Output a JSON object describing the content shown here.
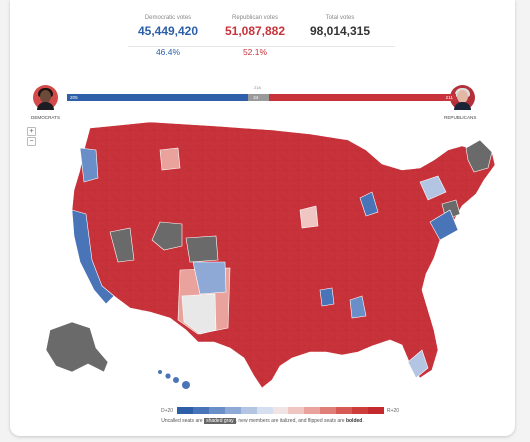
{
  "totals": {
    "democratic": {
      "label": "Democratic votes",
      "votes": "45,449,420",
      "pct": "46.4%"
    },
    "republican": {
      "label": "Republican votes",
      "votes": "51,087,882",
      "pct": "52.1%"
    },
    "total": {
      "label": "Total votes",
      "votes": "98,014,315"
    }
  },
  "seats": {
    "dem": 205,
    "uncalled": 24,
    "rep": 211,
    "majority": "218",
    "dem_label": "205",
    "uncalled_label": "24",
    "rep_label": "211"
  },
  "candidates": {
    "left": "DEMOCRATS",
    "right": "REPUBLICANS"
  },
  "zoom": {
    "in": "+",
    "out": "−"
  },
  "colors": {
    "dem": "#2e5fa8",
    "rep": "#c8323a",
    "uncalled": "#9a9a9a",
    "uncalled_map": "#6a6a6a",
    "neutral": "#e8e8e8"
  },
  "legend": {
    "left": "D+20",
    "right": "R+20",
    "colors": [
      "#2d5ea8",
      "#4a74b8",
      "#6a8ec8",
      "#8ea9d6",
      "#b3c5e3",
      "#d5dfef",
      "#f0e4e4",
      "#f0c6c2",
      "#e9a29c",
      "#e07e78",
      "#d75a55",
      "#cd3e3b",
      "#c42a2d"
    ]
  },
  "caption": {
    "pre": "Uncalled seats are ",
    "shaded": "shaded gray",
    "mid": ", new members are italized, and flipped seats are ",
    "bolded": "bolded",
    "end": "."
  }
}
